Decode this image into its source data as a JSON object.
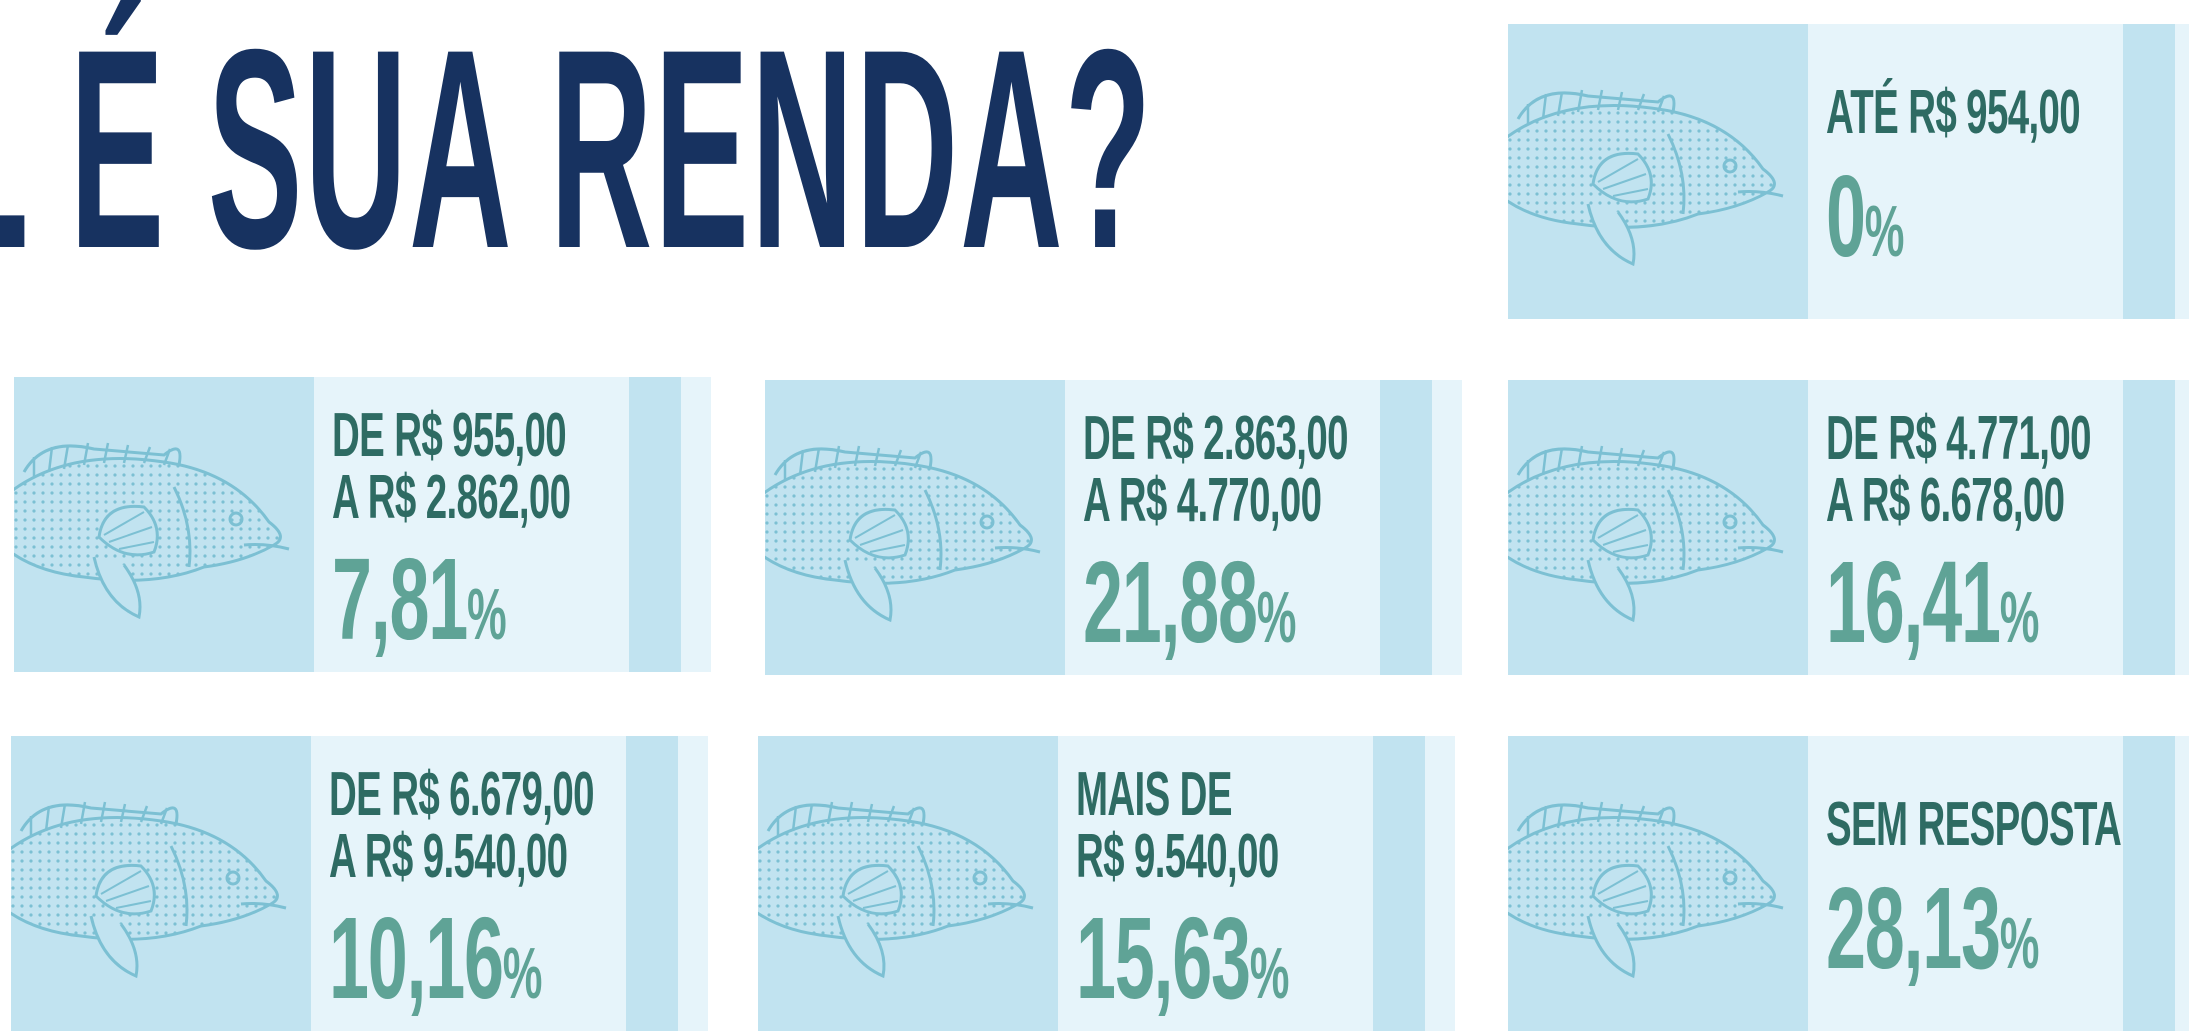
{
  "header": {
    "title": "L É SUA RENDA?"
  },
  "cards": [
    {
      "lines": [
        "ATÉ R$ 954,00"
      ],
      "value": "0",
      "unit": "%"
    },
    {
      "lines": [
        "DE R$ 955,00",
        "A R$ 2.862,00"
      ],
      "value": "7,81",
      "unit": "%"
    },
    {
      "lines": [
        "DE R$ 2.863,00",
        "A R$ 4.770,00"
      ],
      "value": "21,88",
      "unit": "%"
    },
    {
      "lines": [
        "DE R$ 4.771,00",
        "A R$ 6.678,00"
      ],
      "value": "16,41",
      "unit": "%"
    },
    {
      "lines": [
        "DE R$ 6.679,00",
        "A R$ 9.540,00"
      ],
      "value": "10,16",
      "unit": "%"
    },
    {
      "lines": [
        "MAIS DE",
        "R$ 9.540,00"
      ],
      "value": "15,63",
      "unit": "%"
    },
    {
      "lines": [
        "SEM RESPOSTA"
      ],
      "value": "28,13",
      "unit": "%"
    }
  ]
}
